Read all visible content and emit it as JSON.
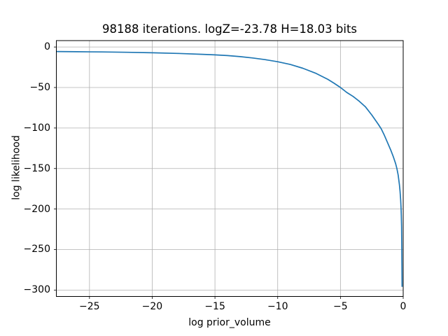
{
  "figure": {
    "background": "#ffffff",
    "text_color": "#000000"
  },
  "chart_data": {
    "type": "line",
    "title": "98188 iterations. logZ=-23.78 H=18.03 bits",
    "xlabel": "log prior_volume",
    "ylabel": "log likelihood",
    "xlim": [
      -27.64,
      0
    ],
    "ylim": [
      -307.9,
      7.9
    ],
    "xticks": [
      -25,
      -20,
      -15,
      -10,
      -5,
      0
    ],
    "xtick_labels": [
      "−25",
      "−20",
      "−15",
      "−10",
      "−5",
      "0"
    ],
    "yticks": [
      0,
      -50,
      -100,
      -150,
      -200,
      -250,
      -300
    ],
    "ytick_labels": [
      "0",
      "−50",
      "−100",
      "−150",
      "−200",
      "−250",
      "−300"
    ],
    "grid": true,
    "legend": "none",
    "line_color": "#1f77b4",
    "grid_color": "#b0b0b0",
    "spine_color": "#000000",
    "series": [
      {
        "name": "log likelihood",
        "x": [
          -27.64,
          -26,
          -24,
          -22,
          -20,
          -18,
          -16,
          -15,
          -14,
          -13,
          -12,
          -11,
          -10,
          -9,
          -8,
          -7,
          -6,
          -5.5,
          -5,
          -4.5,
          -4,
          -3.5,
          -3,
          -2.5,
          -2,
          -1.75,
          -1.5,
          -1.25,
          -1,
          -0.8,
          -0.6,
          -0.5,
          -0.4,
          -0.3,
          -0.25,
          -0.2,
          -0.17,
          -0.15,
          -0.13,
          -0.12,
          -0.11,
          -0.1,
          -0.095,
          -0.09
        ],
        "y": [
          -5.6,
          -5.8,
          -6.1,
          -6.5,
          -7.1,
          -7.9,
          -9.0,
          -9.7,
          -10.6,
          -11.9,
          -13.5,
          -15.6,
          -18.2,
          -21.6,
          -26.2,
          -32.2,
          -40.0,
          -44.8,
          -50.0,
          -56.0,
          -61.0,
          -67.0,
          -74.0,
          -84.0,
          -95.0,
          -101.0,
          -109.0,
          -118.0,
          -127.0,
          -135.0,
          -144.0,
          -150.0,
          -158.0,
          -170.0,
          -178.0,
          -189.0,
          -200.0,
          -208.0,
          -222.0,
          -232.0,
          -248.0,
          -268.0,
          -282.0,
          -296.0
        ]
      }
    ]
  }
}
